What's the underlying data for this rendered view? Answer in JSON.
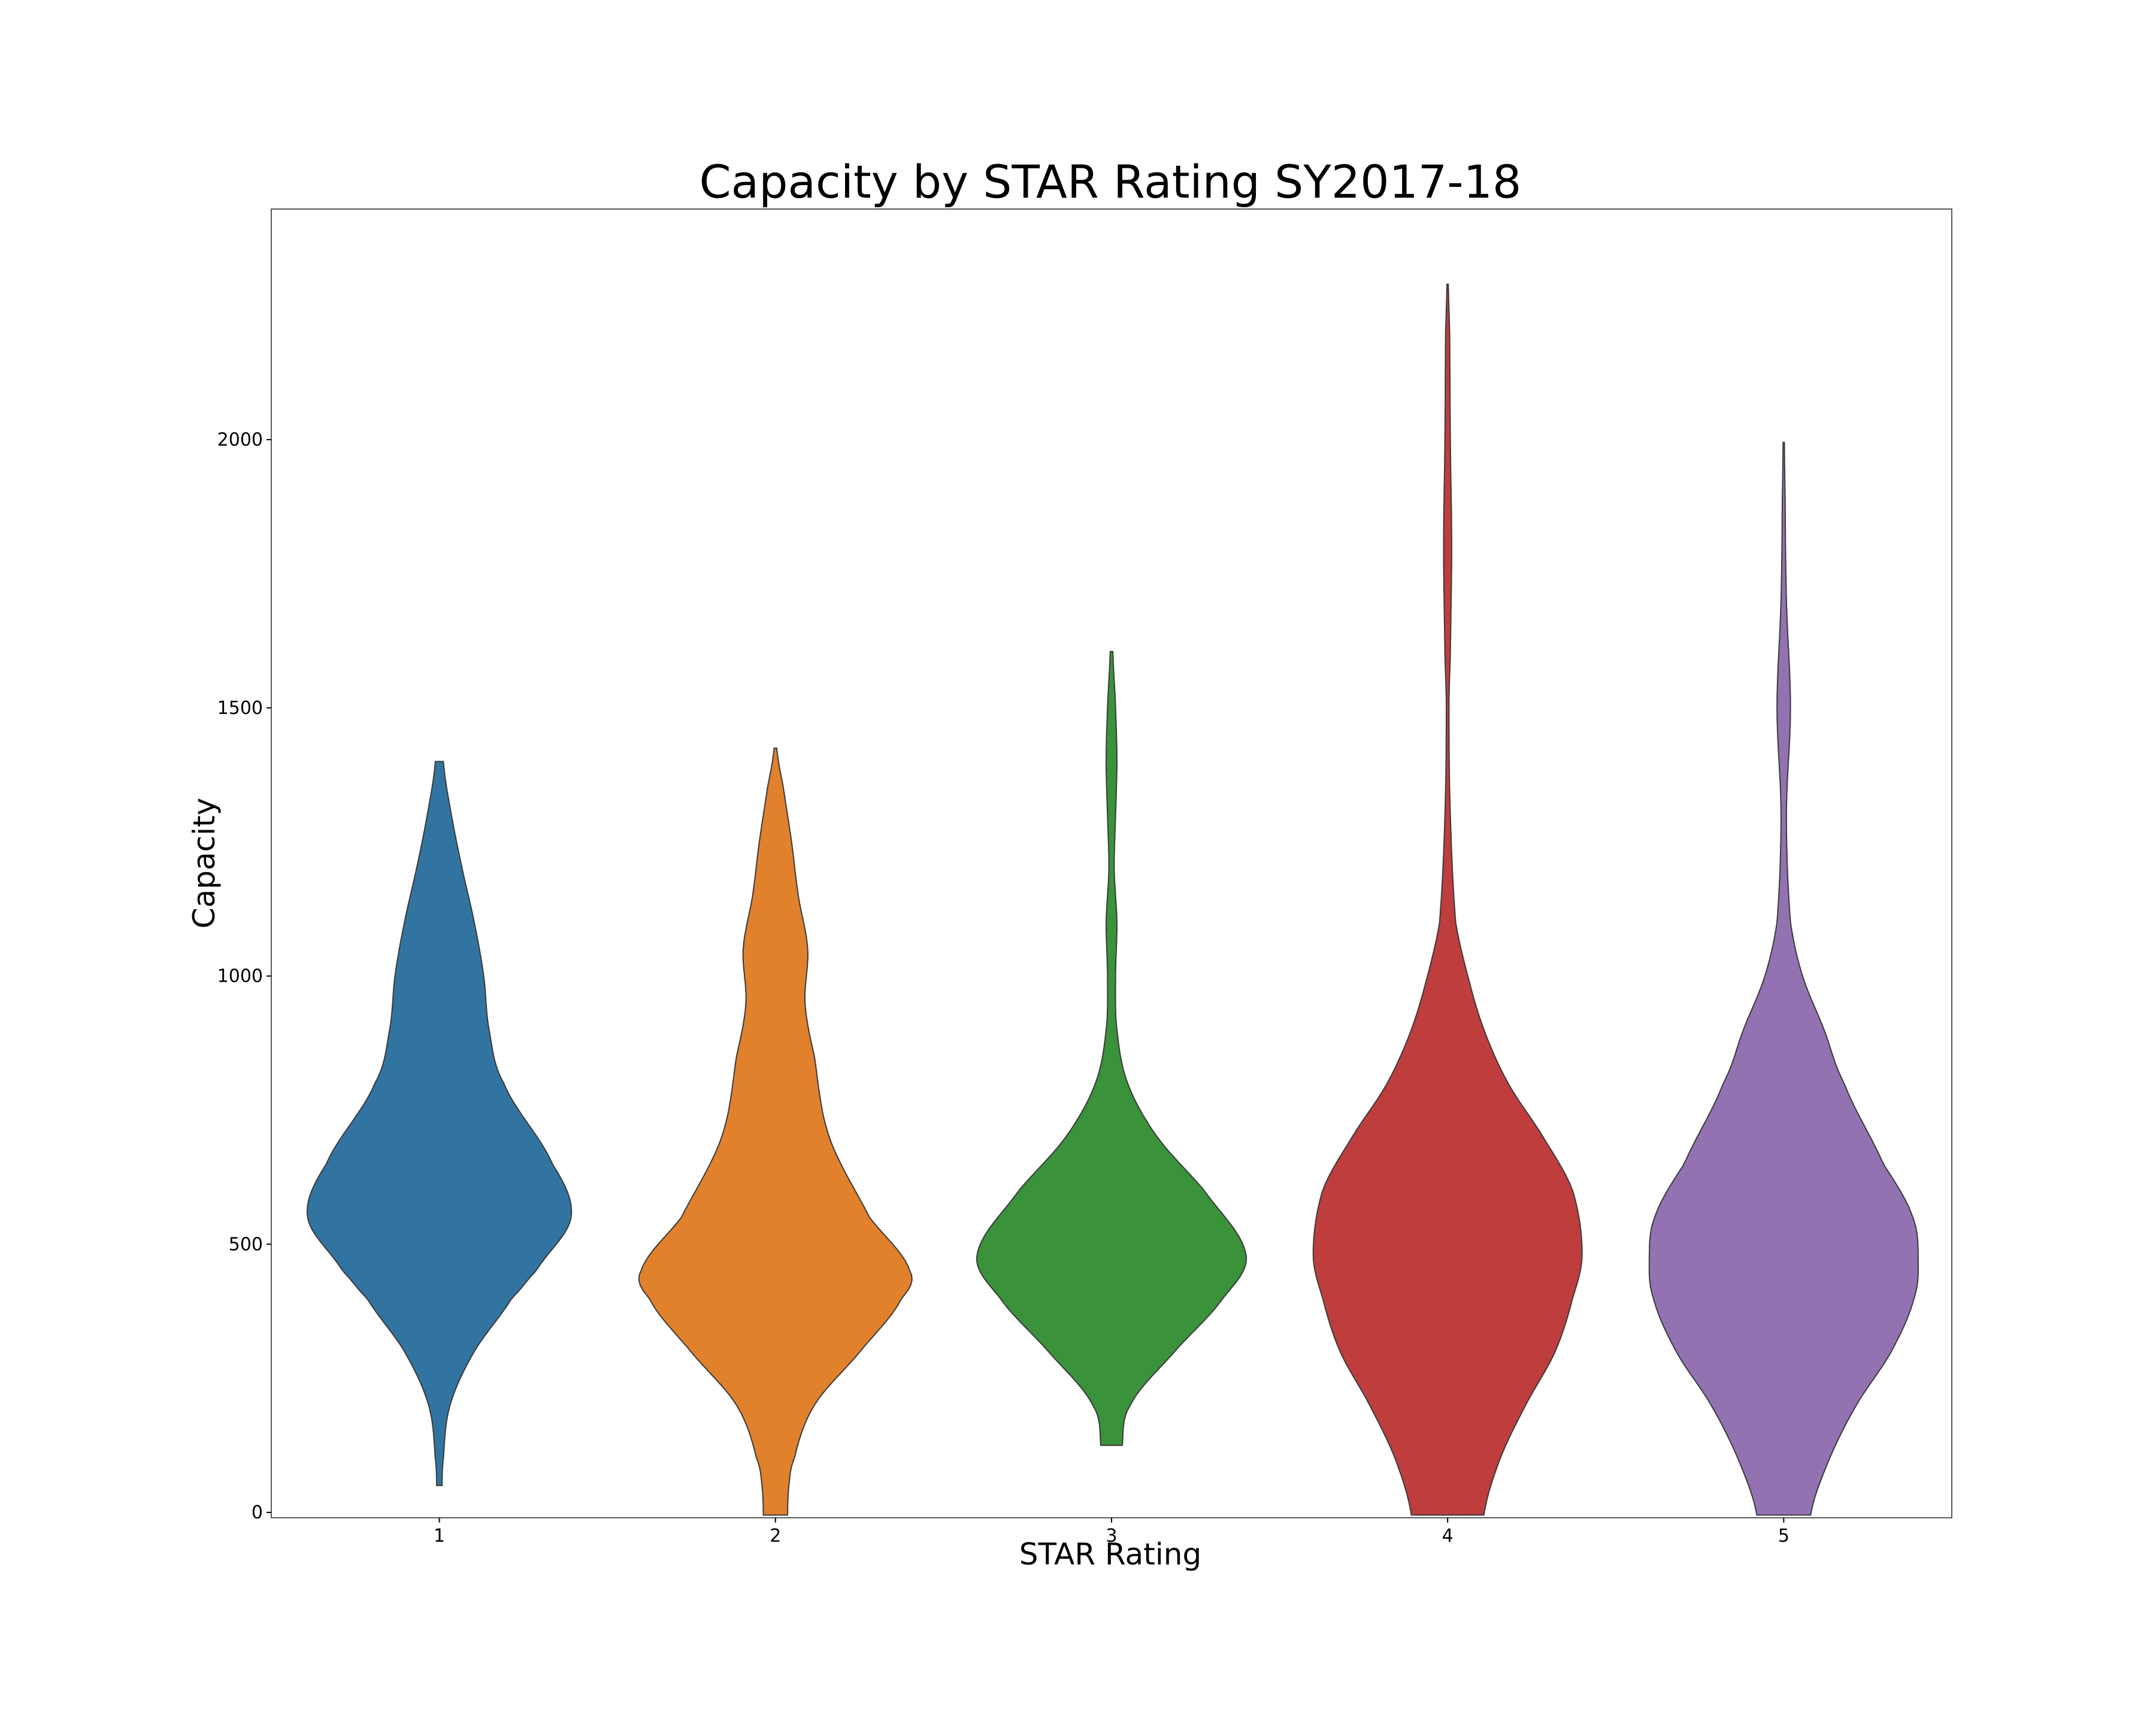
{
  "chart_data": {
    "type": "violin",
    "title": "Capacity by STAR Rating SY2017-18",
    "xlabel": "STAR Rating",
    "ylabel": "Capacity",
    "categories": [
      "1",
      "2",
      "3",
      "4",
      "5"
    ],
    "yticks": [
      0,
      500,
      1000,
      1500,
      2000
    ],
    "ylim": [
      -10,
      2430
    ],
    "grid": false,
    "legend": "none",
    "series": [
      {
        "category": "1",
        "color": "#3274a1",
        "min": 50,
        "max": 1400,
        "profile": [
          [
            50,
            0.02
          ],
          [
            100,
            0.03
          ],
          [
            200,
            0.08
          ],
          [
            300,
            0.26
          ],
          [
            400,
            0.54
          ],
          [
            450,
            0.72
          ],
          [
            550,
            0.98
          ],
          [
            650,
            0.84
          ],
          [
            800,
            0.48
          ],
          [
            900,
            0.37
          ],
          [
            1000,
            0.33
          ],
          [
            1100,
            0.26
          ],
          [
            1200,
            0.17
          ],
          [
            1300,
            0.09
          ],
          [
            1400,
            0.03
          ]
        ]
      },
      {
        "category": "2",
        "color": "#e1812c",
        "min": -5,
        "max": 1425,
        "profile": [
          [
            -5,
            0.09
          ],
          [
            50,
            0.1
          ],
          [
            100,
            0.14
          ],
          [
            200,
            0.29
          ],
          [
            300,
            0.63
          ],
          [
            400,
            0.94
          ],
          [
            450,
            1.0
          ],
          [
            550,
            0.7
          ],
          [
            700,
            0.4
          ],
          [
            850,
            0.29
          ],
          [
            950,
            0.22
          ],
          [
            1050,
            0.24
          ],
          [
            1150,
            0.17
          ],
          [
            1250,
            0.12
          ],
          [
            1350,
            0.06
          ],
          [
            1425,
            0.01
          ]
        ]
      },
      {
        "category": "3",
        "color": "#3a923a",
        "min": 125,
        "max": 1605,
        "profile": [
          [
            125,
            0.08
          ],
          [
            200,
            0.14
          ],
          [
            300,
            0.47
          ],
          [
            400,
            0.83
          ],
          [
            480,
            1.0
          ],
          [
            600,
            0.69
          ],
          [
            700,
            0.34
          ],
          [
            800,
            0.12
          ],
          [
            900,
            0.04
          ],
          [
            1000,
            0.03
          ],
          [
            1100,
            0.04
          ],
          [
            1200,
            0.02
          ],
          [
            1300,
            0.03
          ],
          [
            1400,
            0.04
          ],
          [
            1500,
            0.03
          ],
          [
            1605,
            0.01
          ]
        ]
      },
      {
        "category": "4",
        "color": "#c03d3e",
        "min": -5,
        "max": 2290,
        "profile": [
          [
            -5,
            0.27
          ],
          [
            100,
            0.39
          ],
          [
            200,
            0.58
          ],
          [
            300,
            0.8
          ],
          [
            400,
            0.93
          ],
          [
            480,
            1.0
          ],
          [
            600,
            0.93
          ],
          [
            700,
            0.71
          ],
          [
            800,
            0.45
          ],
          [
            900,
            0.27
          ],
          [
            1000,
            0.15
          ],
          [
            1100,
            0.06
          ],
          [
            1300,
            0.02
          ],
          [
            1500,
            0.01
          ],
          [
            1600,
            0.02
          ],
          [
            1800,
            0.03
          ],
          [
            2000,
            0.02
          ],
          [
            2200,
            0.015
          ],
          [
            2290,
            0.005
          ]
        ]
      },
      {
        "category": "5",
        "color": "#9372b2",
        "min": -5,
        "max": 1995,
        "profile": [
          [
            -5,
            0.2
          ],
          [
            100,
            0.34
          ],
          [
            200,
            0.54
          ],
          [
            300,
            0.8
          ],
          [
            400,
            0.97
          ],
          [
            470,
            1.0
          ],
          [
            550,
            0.96
          ],
          [
            650,
            0.74
          ],
          [
            800,
            0.45
          ],
          [
            900,
            0.3
          ],
          [
            1000,
            0.14
          ],
          [
            1100,
            0.05
          ],
          [
            1300,
            0.02
          ],
          [
            1500,
            0.05
          ],
          [
            1700,
            0.02
          ],
          [
            1900,
            0.01
          ],
          [
            1995,
            0.005
          ]
        ]
      }
    ]
  }
}
